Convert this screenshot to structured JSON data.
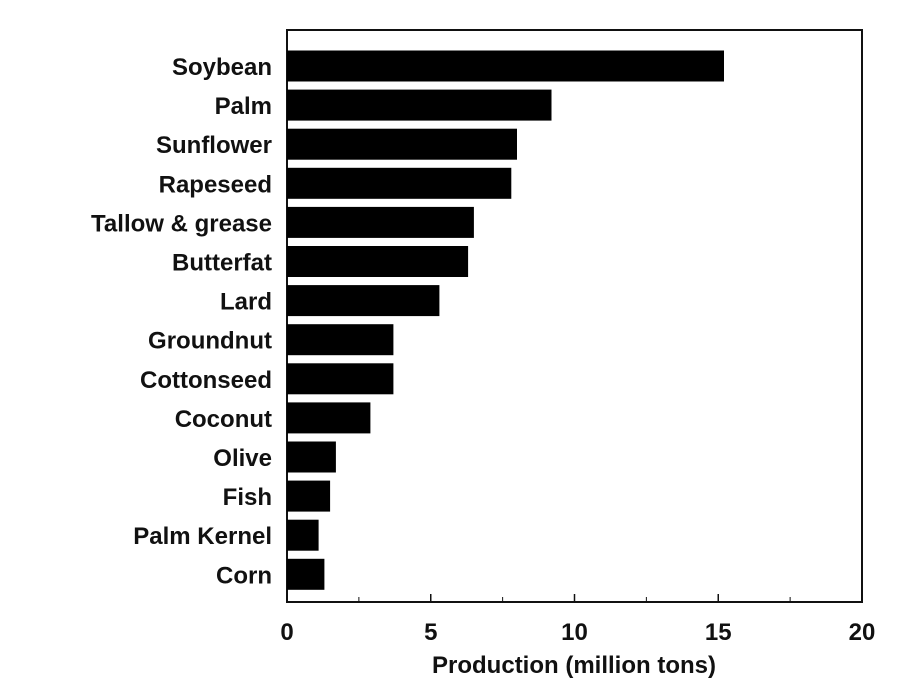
{
  "chart_data": {
    "type": "bar",
    "orientation": "horizontal",
    "title": "",
    "xlabel": "Production (million tons)",
    "ylabel": "",
    "xlim": [
      0,
      20
    ],
    "x_ticks": [
      0,
      5,
      10,
      15,
      20
    ],
    "x_minor_ticks": [
      2.5,
      7.5,
      12.5,
      17.5
    ],
    "grid": false,
    "legend": "none",
    "bar_color": "#000000",
    "categories": [
      "Soybean",
      "Palm",
      "Sunflower",
      "Rapeseed",
      "Tallow & grease",
      "Butterfat",
      "Lard",
      "Groundnut",
      "Cottonseed",
      "Coconut",
      "Olive",
      "Fish",
      "Palm Kernel",
      "Corn"
    ],
    "values": [
      15.2,
      9.2,
      8.0,
      7.8,
      6.5,
      6.3,
      5.3,
      3.7,
      3.7,
      2.9,
      1.7,
      1.5,
      1.1,
      1.3
    ]
  }
}
